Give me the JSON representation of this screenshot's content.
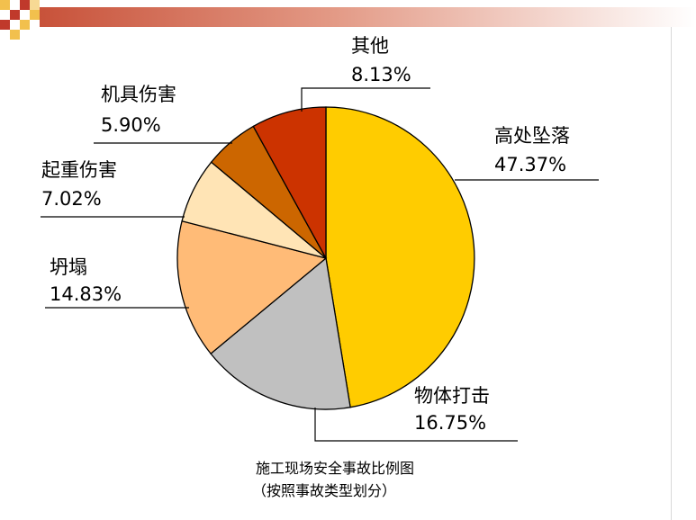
{
  "colors": {
    "accent_red": "#c0392b",
    "accent_yellow": "#f5c343"
  },
  "chart_data": {
    "type": "pie",
    "caption_line1": "施工现场安全事故比例图",
    "caption_line2": "（按照事故类型划分）",
    "slices": [
      {
        "name": "高处坠落",
        "value": 47.37,
        "label": "47.37%",
        "color": "#ffcc00"
      },
      {
        "name": "物体打击",
        "value": 16.75,
        "label": "16.75%",
        "color": "#c0c0c0"
      },
      {
        "name": "坍塌",
        "value": 14.83,
        "label": "14.83%",
        "color": "#ffbb77"
      },
      {
        "name": "起重伤害",
        "value": 7.02,
        "label": "7.02%",
        "color": "#ffe4b5"
      },
      {
        "name": "机具伤害",
        "value": 5.9,
        "label": "5.90%",
        "color": "#cc6600"
      },
      {
        "name": "其他",
        "value": 8.13,
        "label": "8.13%",
        "color": "#cc3300"
      }
    ]
  }
}
